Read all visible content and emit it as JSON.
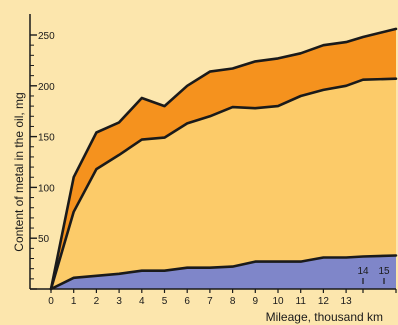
{
  "chart_data": {
    "type": "area",
    "stacked": true,
    "title": "",
    "xlabel": "Mileage, thousand km",
    "ylabel": "Content of metal in the oil, mg",
    "xlim": [
      0,
      15
    ],
    "ylim": [
      0,
      255
    ],
    "x_ticks": [
      0,
      1,
      2,
      3,
      4,
      5,
      6,
      7,
      8,
      9,
      10,
      11,
      12,
      13,
      14,
      15
    ],
    "x_tick_labels": [
      "0",
      "1",
      "2",
      "3",
      "4",
      "5",
      "6",
      "7",
      "8",
      "9",
      "10",
      "11",
      "12",
      "13",
      "14",
      "15"
    ],
    "y_ticks": [
      0,
      50,
      100,
      150,
      200,
      250
    ],
    "y_tick_labels": [
      "",
      "50",
      "100",
      "150",
      "200",
      "250"
    ],
    "grid": false,
    "background_color": "#fce6ad",
    "x": [
      0,
      1,
      2,
      3,
      4,
      5,
      6,
      7,
      8,
      9,
      10,
      11,
      12,
      13,
      14,
      15
    ],
    "series": [
      {
        "color": "#7f86c9",
        "values": [
          0,
          11,
          13,
          15,
          18,
          18,
          21,
          21,
          22,
          27,
          27,
          27,
          31,
          31,
          32,
          33
        ],
        "cumulative": [
          0,
          11,
          13,
          15,
          18,
          18,
          21,
          21,
          22,
          27,
          27,
          27,
          31,
          31,
          32,
          33
        ]
      },
      {
        "color": "#fccb69",
        "values": [
          0,
          65,
          105,
          117,
          129,
          131,
          142,
          149,
          157,
          151,
          153,
          163,
          165,
          169,
          174,
          174
        ],
        "cumulative": [
          0,
          76,
          118,
          132,
          147,
          149,
          163,
          170,
          179,
          178,
          180,
          190,
          196,
          200,
          206,
          207
        ]
      },
      {
        "color": "#f5921e",
        "values": [
          0,
          34,
          36,
          32,
          41,
          31,
          37,
          44,
          38,
          46,
          47,
          42,
          44,
          43,
          42,
          49
        ],
        "cumulative": [
          0,
          110,
          154,
          164,
          188,
          180,
          200,
          214,
          217,
          224,
          227,
          232,
          240,
          243,
          248,
          256
        ]
      }
    ]
  }
}
